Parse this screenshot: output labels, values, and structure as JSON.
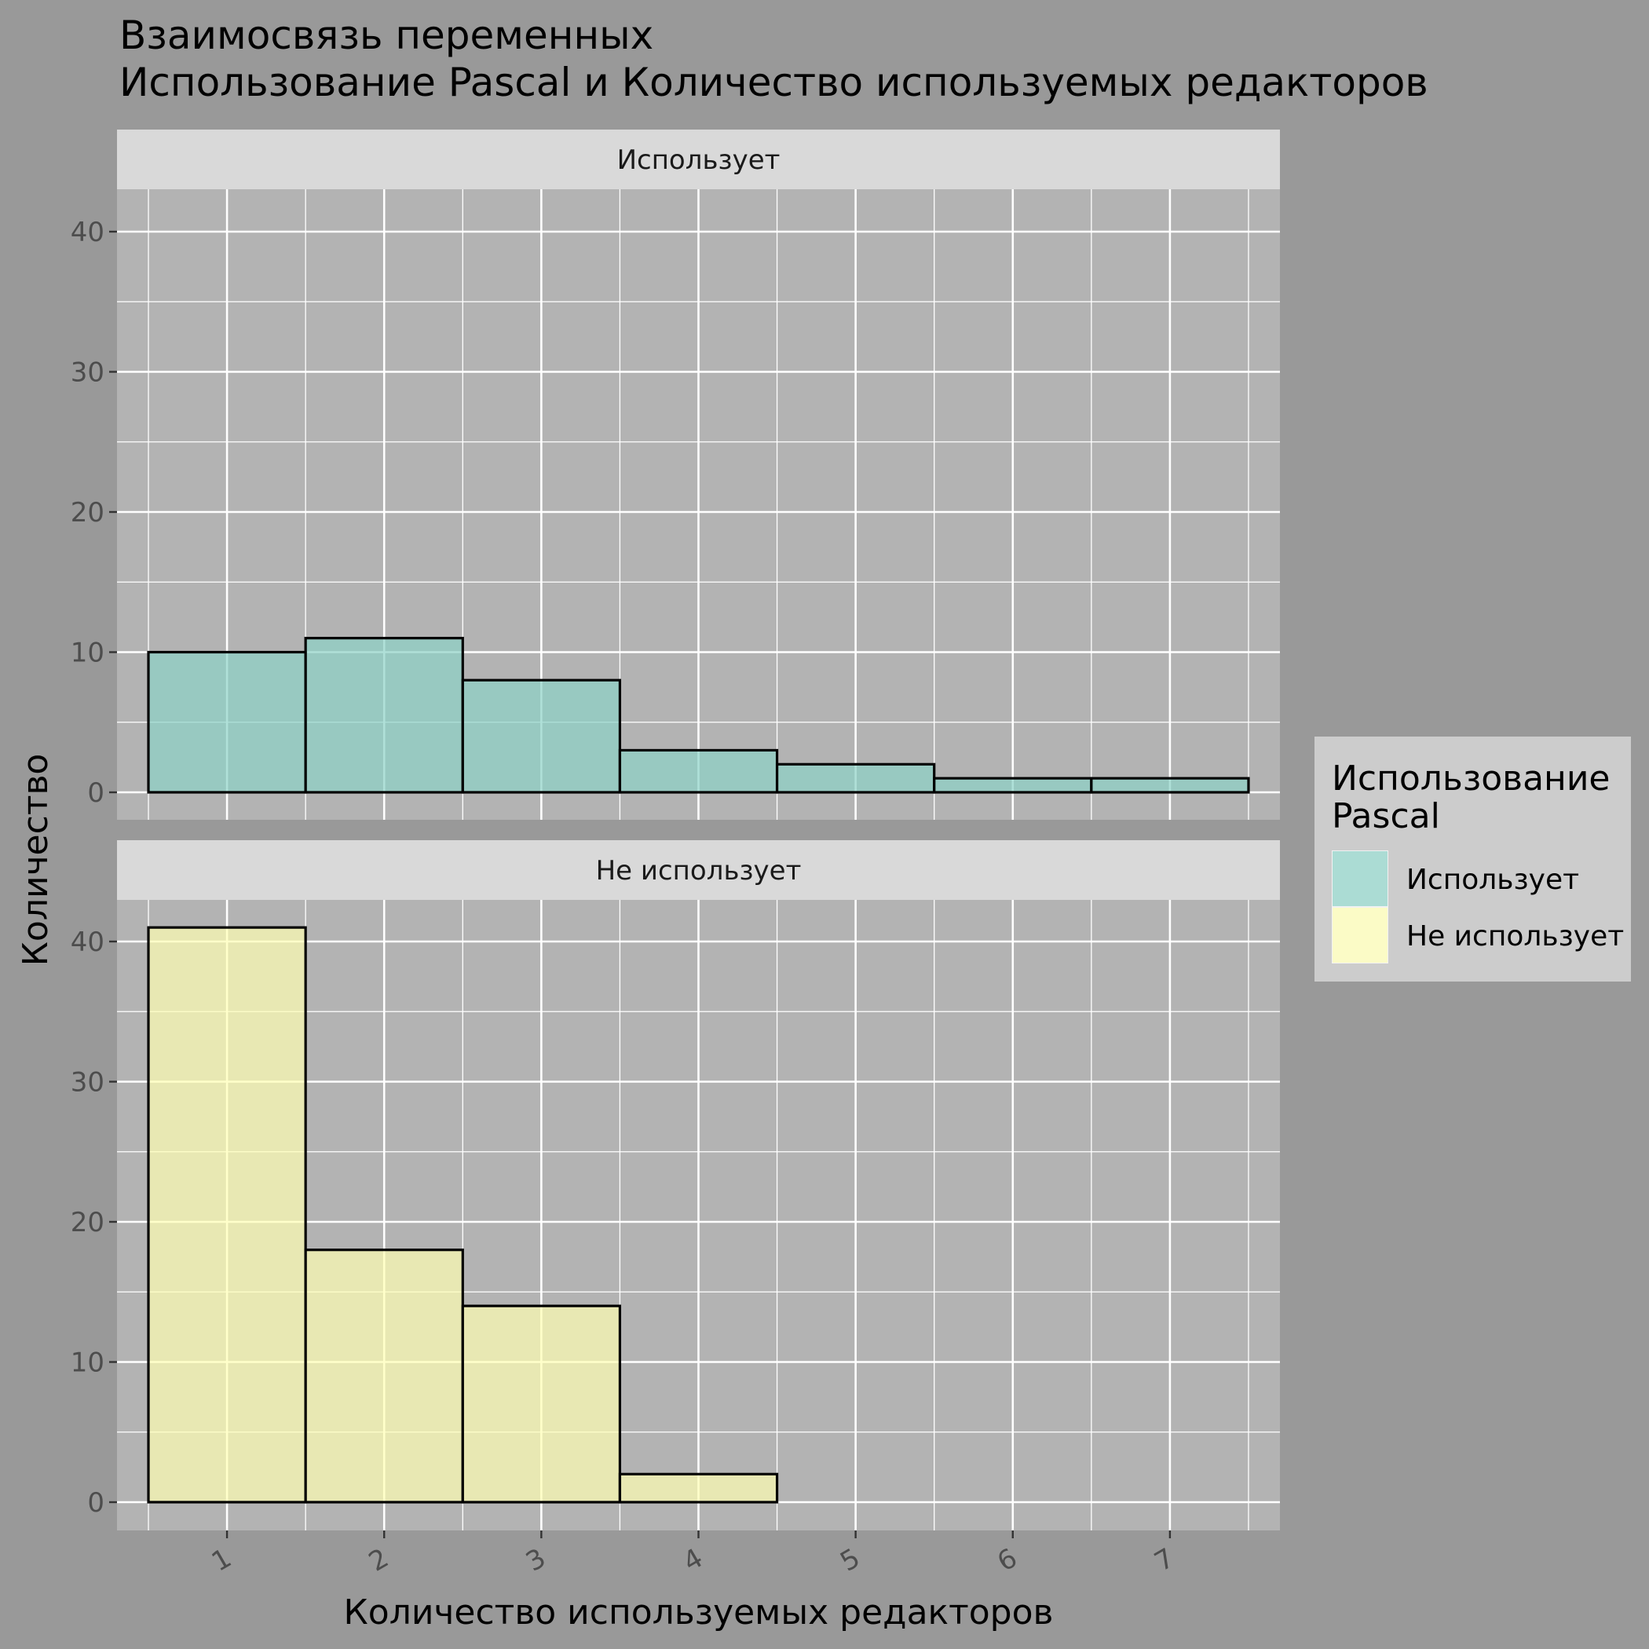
{
  "chart_data": {
    "type": "bar",
    "title_lines": [
      "Взаимосвязь переменных",
      " Использование Pascal и Количество используемых редакторов"
    ],
    "xlabel": "Количество используемых редакторов",
    "ylabel": "Количество",
    "categories": [
      "1",
      "2",
      "3",
      "4",
      "5",
      "6",
      "7"
    ],
    "x": [
      1,
      2,
      3,
      4,
      5,
      6,
      7
    ],
    "ylim": [
      0,
      43
    ],
    "yticks": [
      0,
      10,
      20,
      30,
      40
    ],
    "grid": true,
    "legend": {
      "title_lines": [
        "Использование",
        "Pascal"
      ],
      "position": "right",
      "entries": [
        {
          "label": "Использует",
          "color": "#8dd3c7"
        },
        {
          "label": "Не использует",
          "color": "#ffffb3"
        }
      ]
    },
    "facets": [
      {
        "strip": "Использует",
        "series_name": "Использует",
        "color": "#8dd3c7",
        "values": [
          10,
          11,
          8,
          3,
          2,
          1,
          1
        ]
      },
      {
        "strip": "Не использует",
        "series_name": "Не использует",
        "color": "#ffffb3",
        "values": [
          41,
          18,
          14,
          2,
          0,
          0,
          0
        ]
      }
    ]
  },
  "colors": {
    "background": "#999999",
    "panel": "#b3b3b3",
    "strip": "#d9d9d9",
    "grid": "#ffffff",
    "legend_bg": "#cccccc"
  }
}
